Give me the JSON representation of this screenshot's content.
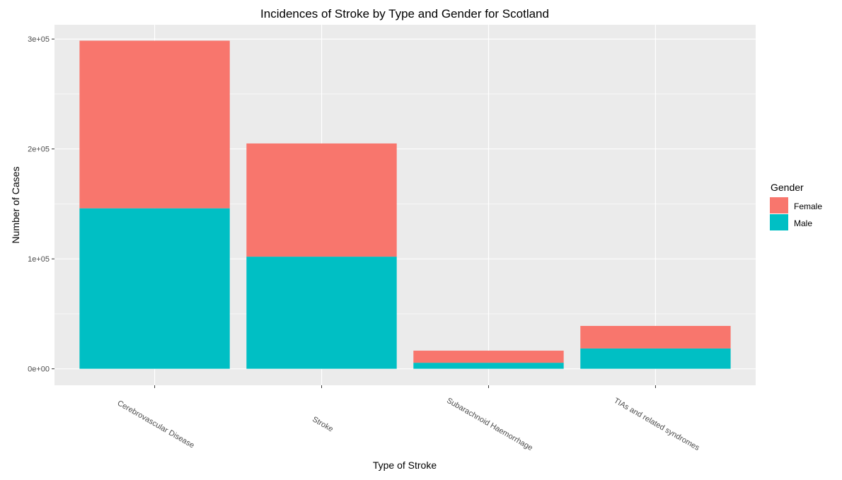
{
  "chart_data": {
    "type": "bar",
    "stacked": true,
    "title": "Incidences of Stroke by Type and Gender for Scotland",
    "xlabel": "Type of Stroke",
    "ylabel": "Number of Cases",
    "categories": [
      "Cerebrovascular Disease",
      "Stroke",
      "Subarachnoid Haemorrhage",
      "TIAs and related syndromes"
    ],
    "series": [
      {
        "name": "Male",
        "color": "#00BFC4",
        "values": [
          146000,
          102000,
          5500,
          18500
        ]
      },
      {
        "name": "Female",
        "color": "#F8766D",
        "values": [
          152500,
          103000,
          11000,
          20500
        ]
      }
    ],
    "ylim": [
      -15000,
      313000
    ],
    "yticks": [
      0,
      100000,
      200000,
      300000
    ],
    "ytick_labels": [
      "0e+00",
      "1e+05",
      "2e+05",
      "3e+05"
    ],
    "grid": true,
    "legend": {
      "title": "Gender",
      "position": "right",
      "entries": [
        {
          "label": "Female",
          "color": "#F8766D"
        },
        {
          "label": "Male",
          "color": "#00BFC4"
        }
      ]
    },
    "panel_color": "#EBEBEB",
    "grid_color": "#FFFFFF"
  }
}
